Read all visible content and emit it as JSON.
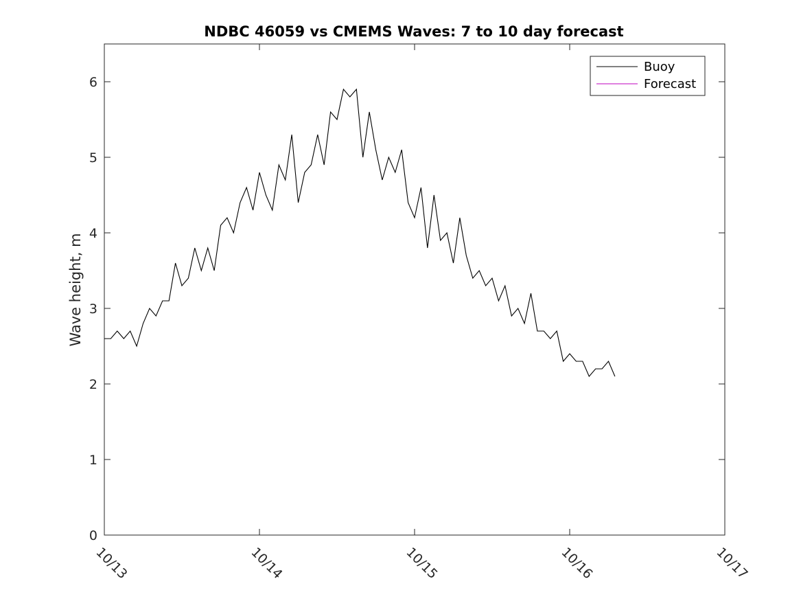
{
  "chart_data": {
    "type": "line",
    "title": "NDBC 46059 vs CMEMS Waves: 7 to 10 day forecast",
    "xlabel": "",
    "ylabel": "Wave height, m",
    "xlim": [
      "10/13",
      "10/17"
    ],
    "ylim": [
      0,
      6.5
    ],
    "x_tick_labels": [
      "10/13",
      "10/14",
      "10/15",
      "10/16",
      "10/17"
    ],
    "y_tick_labels": [
      "0",
      "1",
      "2",
      "3",
      "4",
      "5",
      "6"
    ],
    "grid": false,
    "legend_position": "top-right",
    "series": [
      {
        "name": "Buoy",
        "color": "#000000",
        "x": [
          "10/13 00:00",
          "10/13 01:00",
          "10/13 02:00",
          "10/13 03:00",
          "10/13 04:00",
          "10/13 05:00",
          "10/13 06:00",
          "10/13 07:00",
          "10/13 08:00",
          "10/13 09:00",
          "10/13 10:00",
          "10/13 11:00",
          "10/13 12:00",
          "10/13 13:00",
          "10/13 14:00",
          "10/13 15:00",
          "10/13 16:00",
          "10/13 17:00",
          "10/13 18:00",
          "10/13 19:00",
          "10/13 20:00",
          "10/13 21:00",
          "10/13 22:00",
          "10/13 23:00",
          "10/14 00:00",
          "10/14 01:00",
          "10/14 02:00",
          "10/14 03:00",
          "10/14 04:00",
          "10/14 05:00",
          "10/14 06:00",
          "10/14 07:00",
          "10/14 08:00",
          "10/14 09:00",
          "10/14 10:00",
          "10/14 11:00",
          "10/14 12:00",
          "10/14 13:00",
          "10/14 14:00",
          "10/14 15:00",
          "10/14 16:00",
          "10/14 17:00",
          "10/14 18:00",
          "10/14 19:00",
          "10/14 20:00",
          "10/14 21:00",
          "10/14 22:00",
          "10/14 23:00",
          "10/15 00:00",
          "10/15 01:00",
          "10/15 02:00",
          "10/15 03:00",
          "10/15 04:00",
          "10/15 05:00",
          "10/15 06:00",
          "10/15 07:00",
          "10/15 08:00",
          "10/15 09:00",
          "10/15 10:00",
          "10/15 11:00",
          "10/15 12:00",
          "10/15 13:00",
          "10/15 14:00",
          "10/15 15:00",
          "10/15 16:00",
          "10/15 17:00",
          "10/15 18:00",
          "10/15 19:00",
          "10/15 20:00",
          "10/15 21:00",
          "10/15 22:00",
          "10/15 23:00",
          "10/16 00:00",
          "10/16 01:00",
          "10/16 02:00",
          "10/16 03:00",
          "10/16 04:00",
          "10/16 05:00",
          "10/16 06:00",
          "10/16 07:00"
        ],
        "values": [
          2.6,
          2.6,
          2.7,
          2.6,
          2.7,
          2.5,
          2.8,
          3.0,
          2.9,
          3.1,
          3.1,
          3.6,
          3.3,
          3.4,
          3.8,
          3.5,
          3.8,
          3.5,
          4.1,
          4.2,
          4.0,
          4.4,
          4.6,
          4.3,
          4.8,
          4.5,
          4.3,
          4.9,
          4.7,
          5.3,
          4.4,
          4.8,
          4.9,
          5.3,
          4.9,
          5.6,
          5.5,
          5.9,
          5.8,
          5.9,
          5.0,
          5.6,
          5.1,
          4.7,
          5.0,
          4.8,
          5.1,
          4.4,
          4.2,
          4.6,
          3.8,
          4.5,
          3.9,
          4.0,
          3.6,
          4.2,
          3.7,
          3.4,
          3.5,
          3.3,
          3.4,
          3.1,
          3.3,
          2.9,
          3.0,
          2.8,
          3.2,
          2.7,
          2.7,
          2.6,
          2.7,
          2.3,
          2.4,
          2.3,
          2.3,
          2.1,
          2.2,
          2.2,
          2.3,
          2.1
        ]
      },
      {
        "name": "Forecast",
        "color": "#bf00bf",
        "x": [],
        "values": []
      }
    ]
  }
}
